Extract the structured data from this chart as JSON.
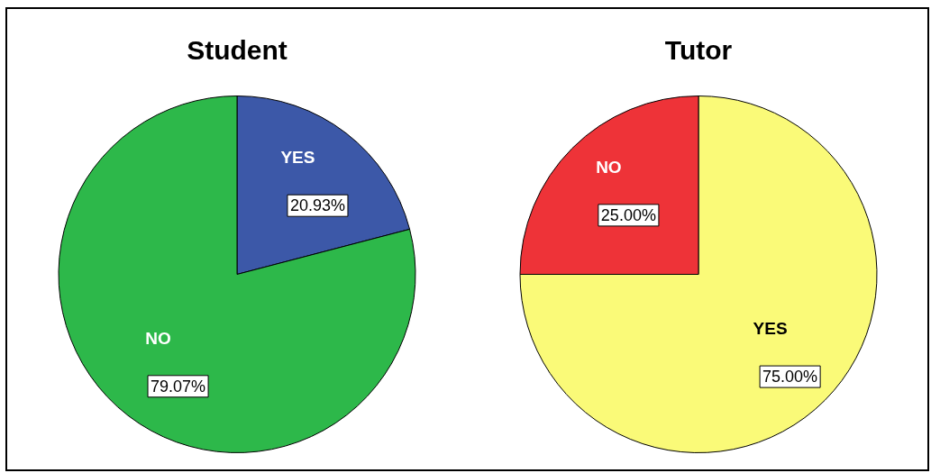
{
  "chart_data": [
    {
      "type": "pie",
      "title": "Student",
      "categories": [
        "YES",
        "NO"
      ],
      "values": [
        20.93,
        79.07
      ],
      "colors": [
        "#3c58a8",
        "#2db84a"
      ],
      "value_labels": [
        "20.93%",
        "79.07%"
      ]
    },
    {
      "type": "pie",
      "title": "Tutor",
      "categories": [
        "YES",
        "NO"
      ],
      "values": [
        75,
        25
      ],
      "colors": [
        "#fafa78",
        "#ee3338"
      ],
      "value_labels": [
        "75.00%",
        "25.00%"
      ]
    }
  ]
}
